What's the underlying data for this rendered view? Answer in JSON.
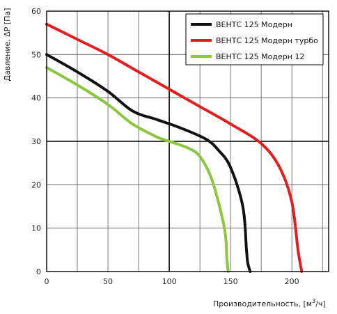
{
  "chart_data": {
    "type": "line",
    "xlabel": "Производительность, [м",
    "xlabel_sup": "3",
    "xlabel_end": "/ч]",
    "ylabel": "Давление, ΔP [Па]",
    "xlim": [
      0,
      230
    ],
    "ylim": [
      0,
      60
    ],
    "x_ticks": [
      "0",
      "50",
      "100",
      "150",
      "200"
    ],
    "y_ticks": [
      "0",
      "10",
      "20",
      "30",
      "40",
      "50",
      "60"
    ],
    "x_tick_values": [
      0,
      50,
      100,
      150,
      200
    ],
    "y_tick_values": [
      0,
      10,
      20,
      30,
      40,
      50,
      60
    ],
    "x_grid_step": 25,
    "y_grid_step": 10,
    "x_major_grid": [
      100
    ],
    "y_major_grid": [
      30
    ],
    "grid": true,
    "legend_position": "top-right",
    "series": [
      {
        "name": "ВЕНТС 125 Модерн",
        "color": "#111111",
        "x": [
          0,
          25,
          50,
          70,
          90,
          110,
          130,
          140,
          150,
          160,
          163,
          164,
          166
        ],
        "y": [
          50,
          46,
          41.5,
          37,
          35,
          33,
          30.5,
          28,
          24,
          15,
          5,
          2,
          0
        ]
      },
      {
        "name": "ВЕНТС 125 Модерн турбо",
        "color": "#e02020",
        "x": [
          0,
          25,
          50,
          75,
          100,
          125,
          150,
          175,
          190,
          200,
          205,
          208
        ],
        "y": [
          57,
          53.5,
          50,
          46,
          42,
          38,
          34,
          29.5,
          24,
          16,
          5,
          0
        ]
      },
      {
        "name": "ВЕНТС 125 Модерн 12",
        "color": "#8cc63f",
        "x": [
          0,
          25,
          50,
          70,
          90,
          100,
          115,
          125,
          135,
          145,
          147,
          148
        ],
        "y": [
          47,
          43,
          38.5,
          34,
          31,
          30,
          28.5,
          26.5,
          21,
          10,
          3,
          0
        ]
      }
    ]
  }
}
